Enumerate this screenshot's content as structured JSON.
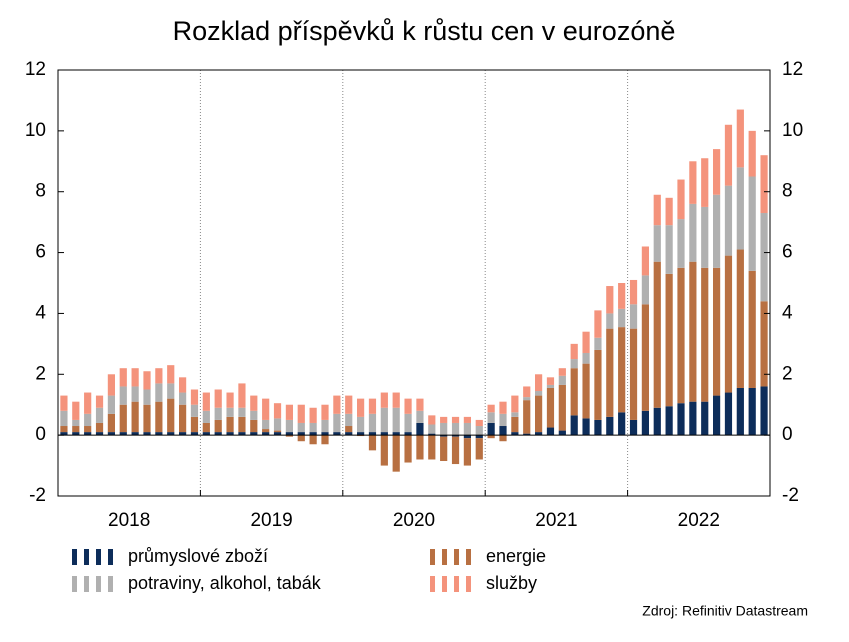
{
  "chart_data": {
    "type": "bar",
    "stacked": true,
    "title": "Rozklad příspěvků k růstu cen v eurozóně",
    "source": "Zdroj: Refinitiv Datastream",
    "categories": [
      null,
      null,
      null,
      null,
      null,
      null,
      "2018",
      null,
      null,
      null,
      null,
      null,
      null,
      null,
      null,
      null,
      null,
      null,
      "2019",
      null,
      null,
      null,
      null,
      null,
      null,
      null,
      null,
      null,
      null,
      null,
      "2020",
      null,
      null,
      null,
      null,
      null,
      null,
      null,
      null,
      null,
      null,
      null,
      "2021",
      null,
      null,
      null,
      null,
      null,
      null,
      null,
      null,
      null,
      null,
      null,
      "2022",
      null,
      null,
      null,
      null,
      null
    ],
    "series": [
      {
        "name": "průmyslové zboží",
        "color": "#0d2d5a",
        "values": [
          0.1,
          0.1,
          0.1,
          0.1,
          0.1,
          0.1,
          0.1,
          0.1,
          0.1,
          0.1,
          0.1,
          0.1,
          0.1,
          0.1,
          0.1,
          0.1,
          0.1,
          0.1,
          0.1,
          0.1,
          0.1,
          0.1,
          0.1,
          0.1,
          0.1,
          0.1,
          0.1,
          0.1,
          0.1,
          0.1,
          0.4,
          0.05,
          -0.05,
          -0.05,
          -0.1,
          -0.1,
          0.4,
          0.3,
          0.1,
          0.05,
          0.1,
          0.25,
          0.15,
          0.65,
          0.55,
          0.5,
          0.6,
          0.75,
          0.5,
          0.8,
          0.9,
          0.95,
          1.05,
          1.1,
          1.1,
          1.3,
          1.4,
          1.55,
          1.55,
          1.6
        ]
      },
      {
        "name": "energie",
        "color": "#b87042",
        "values": [
          0.2,
          0.2,
          0.2,
          0.3,
          0.6,
          0.9,
          1.0,
          0.9,
          1.0,
          1.1,
          0.9,
          0.5,
          0.3,
          0.4,
          0.5,
          0.5,
          0.4,
          0.1,
          0.05,
          -0.05,
          -0.2,
          -0.3,
          -0.3,
          0.0,
          0.2,
          -0.03,
          -0.5,
          -1.0,
          -1.2,
          -0.9,
          -0.8,
          -0.8,
          -0.8,
          -0.9,
          -0.9,
          -0.7,
          -0.1,
          -0.2,
          0.5,
          1.1,
          1.2,
          1.3,
          1.5,
          1.55,
          1.8,
          2.3,
          2.9,
          2.8,
          3.0,
          3.5,
          4.8,
          4.35,
          4.45,
          4.6,
          4.4,
          4.2,
          4.5,
          4.55,
          3.85,
          2.8
        ]
      },
      {
        "name": "potraviny, alkohol, tabák",
        "color": "#b0b0b0",
        "values": [
          0.5,
          0.2,
          0.4,
          0.5,
          0.6,
          0.6,
          0.5,
          0.5,
          0.6,
          0.5,
          0.4,
          0.4,
          0.4,
          0.4,
          0.3,
          0.3,
          0.3,
          0.3,
          0.4,
          0.4,
          0.3,
          0.3,
          0.4,
          0.6,
          0.4,
          0.5,
          0.6,
          0.8,
          0.8,
          0.6,
          0.4,
          0.3,
          0.4,
          0.4,
          0.4,
          0.3,
          0.35,
          0.4,
          0.15,
          0.1,
          0.15,
          0.1,
          0.3,
          0.3,
          0.35,
          0.4,
          0.5,
          0.6,
          0.8,
          0.95,
          1.2,
          1.6,
          1.6,
          1.9,
          2.0,
          2.4,
          2.3,
          2.7,
          3.1,
          2.9
        ]
      },
      {
        "name": "služby",
        "color": "#f4937c",
        "values": [
          0.5,
          0.6,
          0.7,
          0.4,
          0.7,
          0.6,
          0.6,
          0.6,
          0.5,
          0.6,
          0.5,
          0.5,
          0.6,
          0.6,
          0.5,
          0.8,
          0.5,
          0.7,
          0.5,
          0.5,
          0.6,
          0.5,
          0.5,
          0.6,
          0.6,
          0.6,
          0.5,
          0.5,
          0.5,
          0.5,
          0.4,
          0.3,
          0.2,
          0.2,
          0.2,
          0.2,
          0.25,
          0.4,
          0.55,
          0.35,
          0.55,
          0.25,
          0.25,
          0.5,
          0.7,
          0.9,
          0.9,
          0.85,
          0.8,
          0.95,
          1.0,
          0.9,
          1.3,
          1.4,
          1.6,
          1.5,
          2.0,
          1.9,
          1.5,
          1.9
        ]
      }
    ],
    "ylim": [
      -2,
      12
    ],
    "yticks": [
      -2,
      0,
      2,
      4,
      6,
      8,
      10,
      12
    ],
    "y2lim": [
      -2,
      12
    ],
    "y2ticks": [
      -2,
      0,
      2,
      4,
      6,
      8,
      10,
      12
    ],
    "grid": true
  }
}
